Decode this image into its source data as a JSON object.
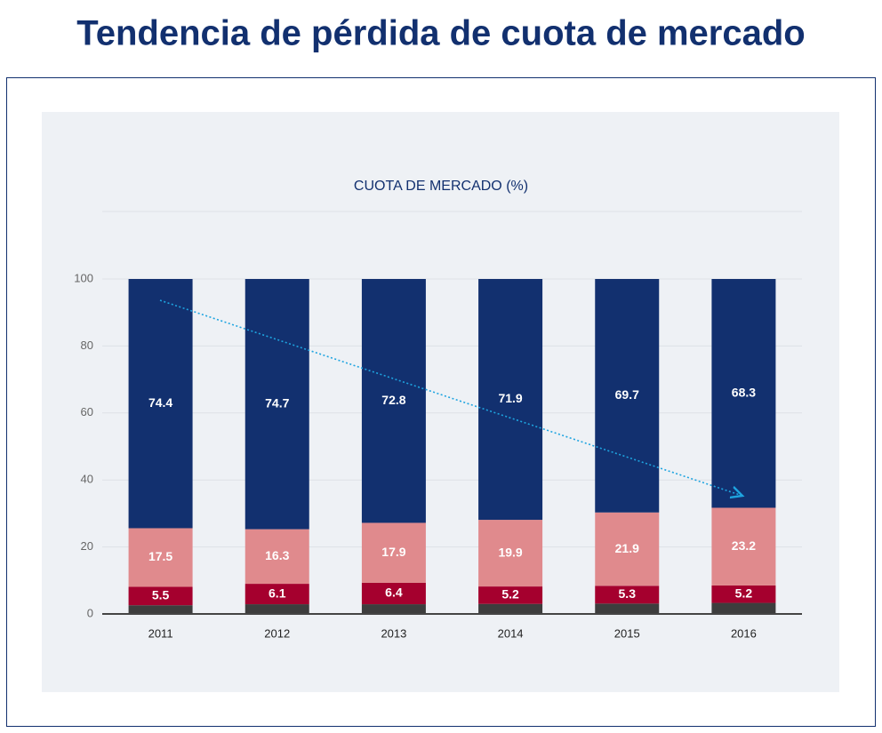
{
  "header": {
    "title": "Tendencia de pérdida de cuota de mercado"
  },
  "chart_data": {
    "type": "stacked_bar",
    "title": "CUOTA DE MERCADO (%)",
    "categories": [
      "2011",
      "2012",
      "2013",
      "2014",
      "2015",
      "2016"
    ],
    "series": [
      {
        "color": "#3d3d3d",
        "values": [
          2.6,
          2.9,
          2.9,
          3.0,
          3.1,
          3.3
        ],
        "data_labels": false
      },
      {
        "color": "#a5002e",
        "values": [
          5.5,
          6.1,
          6.4,
          5.2,
          5.3,
          5.2
        ],
        "data_labels": true
      },
      {
        "color": "#e08a8d",
        "values": [
          17.5,
          16.3,
          17.9,
          19.9,
          21.9,
          23.2
        ],
        "data_labels": true
      },
      {
        "color": "#12306f",
        "values": [
          74.4,
          74.7,
          72.8,
          71.9,
          69.7,
          68.3
        ],
        "data_labels": true
      }
    ],
    "ylim": [
      0,
      100
    ],
    "yticks": [
      0,
      20,
      40,
      60,
      80,
      100
    ],
    "grid": true
  }
}
